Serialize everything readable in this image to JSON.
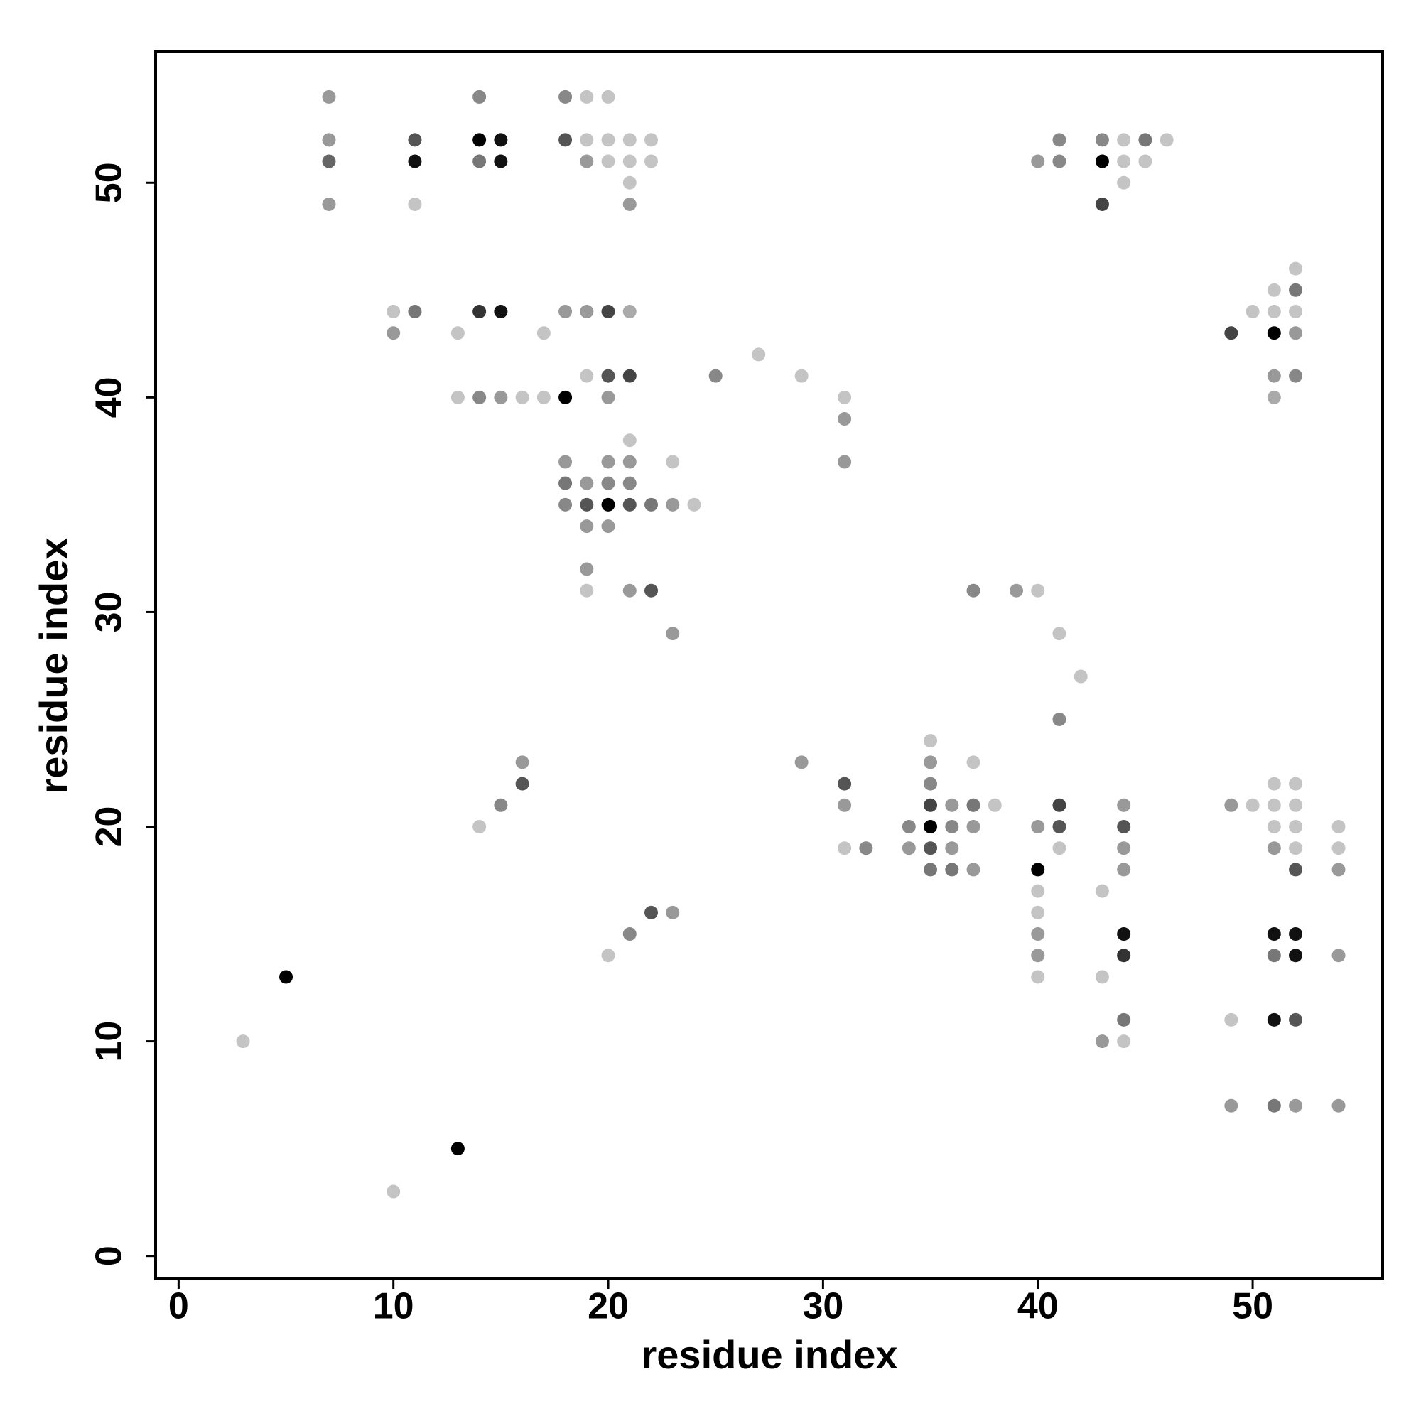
{
  "chart_data": {
    "type": "scatter",
    "x_label": "residue index",
    "y_label": "residue index",
    "xlim": [
      -1.07,
      56.05
    ],
    "ylim": [
      -1.07,
      56.1
    ],
    "xticks": [
      0,
      10,
      20,
      30,
      40,
      50
    ],
    "yticks": [
      0,
      10,
      20,
      30,
      40,
      50
    ],
    "x": [
      7,
      14,
      18,
      19,
      20,
      7,
      11,
      14,
      15,
      18,
      19,
      20,
      21,
      22,
      41,
      43,
      44,
      45,
      46,
      7,
      11,
      14,
      15,
      19,
      20,
      21,
      22,
      40,
      41,
      43,
      44,
      45,
      21,
      44,
      7,
      11,
      21,
      43,
      52,
      51,
      52,
      10,
      11,
      14,
      15,
      18,
      19,
      20,
      21,
      50,
      51,
      52,
      10,
      13,
      17,
      49,
      51,
      52,
      27,
      19,
      20,
      21,
      25,
      29,
      51,
      52,
      13,
      14,
      15,
      16,
      17,
      18,
      20,
      31,
      51,
      31,
      21,
      18,
      20,
      21,
      23,
      31,
      18,
      19,
      20,
      21,
      18,
      19,
      20,
      21,
      22,
      23,
      24,
      19,
      20,
      19,
      19,
      21,
      22,
      37,
      39,
      40,
      23,
      41,
      42,
      41,
      35,
      16,
      29,
      35,
      37,
      16,
      31,
      35,
      51,
      52,
      15,
      31,
      35,
      36,
      37,
      38,
      41,
      44,
      49,
      50,
      51,
      52,
      14,
      34,
      35,
      36,
      37,
      40,
      41,
      44,
      51,
      52,
      54,
      31,
      32,
      34,
      35,
      36,
      41,
      44,
      51,
      52,
      54,
      35,
      36,
      37,
      40,
      44,
      52,
      54,
      40,
      43,
      22,
      23,
      40,
      21,
      40,
      44,
      51,
      52,
      20,
      40,
      44,
      51,
      52,
      54,
      5,
      40,
      43,
      44,
      49,
      51,
      52,
      3,
      43,
      44,
      49,
      51,
      52,
      54,
      13,
      10
    ],
    "values": [
      54,
      54,
      54,
      54,
      54,
      52,
      52,
      52,
      52,
      52,
      52,
      52,
      52,
      52,
      52,
      52,
      52,
      52,
      52,
      51,
      51,
      51,
      51,
      51,
      51,
      51,
      51,
      51,
      51,
      51,
      51,
      51,
      50,
      50,
      49,
      49,
      49,
      49,
      46,
      45,
      45,
      44,
      44,
      44,
      44,
      44,
      44,
      44,
      44,
      44,
      44,
      44,
      43,
      43,
      43,
      43,
      43,
      43,
      42,
      41,
      41,
      41,
      41,
      41,
      41,
      41,
      40,
      40,
      40,
      40,
      40,
      40,
      40,
      40,
      40,
      39,
      38,
      37,
      37,
      37,
      37,
      37,
      36,
      36,
      36,
      36,
      35,
      35,
      35,
      35,
      35,
      35,
      35,
      34,
      34,
      32,
      31,
      31,
      31,
      31,
      31,
      31,
      29,
      29,
      27,
      25,
      24,
      23,
      23,
      23,
      23,
      22,
      22,
      22,
      22,
      22,
      21,
      21,
      21,
      21,
      21,
      21,
      21,
      21,
      21,
      21,
      21,
      21,
      20,
      20,
      20,
      20,
      20,
      20,
      20,
      20,
      20,
      20,
      20,
      19,
      19,
      19,
      19,
      19,
      19,
      19,
      19,
      19,
      19,
      18,
      18,
      18,
      18,
      18,
      18,
      18,
      17,
      17,
      16,
      16,
      16,
      15,
      15,
      15,
      15,
      15,
      14,
      14,
      14,
      14,
      14,
      14,
      13,
      13,
      13,
      11,
      11,
      11,
      11,
      10,
      10,
      10,
      7,
      7,
      7,
      7,
      5,
      3
    ],
    "colors": [
      "#999999",
      "#888888",
      "#888888",
      "#c4c4c4",
      "#c4c4c4",
      "#999999",
      "#555555",
      "#000000",
      "#111111",
      "#555555",
      "#c4c4c4",
      "#c4c4c4",
      "#c4c4c4",
      "#c4c4c4",
      "#888888",
      "#888888",
      "#c4c4c4",
      "#777777",
      "#c4c4c4",
      "#666666",
      "#111111",
      "#777777",
      "#111111",
      "#999999",
      "#c4c4c4",
      "#c4c4c4",
      "#c4c4c4",
      "#999999",
      "#888888",
      "#000000",
      "#c4c4c4",
      "#c4c4c4",
      "#c4c4c4",
      "#c4c4c4",
      "#999999",
      "#c4c4c4",
      "#999999",
      "#444444",
      "#c4c4c4",
      "#c4c4c4",
      "#777777",
      "#c4c4c4",
      "#777777",
      "#333333",
      "#111111",
      "#999999",
      "#999999",
      "#444444",
      "#aaaaaa",
      "#c4c4c4",
      "#c4c4c4",
      "#c4c4c4",
      "#999999",
      "#c4c4c4",
      "#c4c4c4",
      "#444444",
      "#000000",
      "#999999",
      "#c4c4c4",
      "#c4c4c4",
      "#555555",
      "#444444",
      "#888888",
      "#c4c4c4",
      "#999999",
      "#888888",
      "#c4c4c4",
      "#888888",
      "#999999",
      "#c4c4c4",
      "#c4c4c4",
      "#000000",
      "#999999",
      "#c4c4c4",
      "#aaaaaa",
      "#999999",
      "#c4c4c4",
      "#999999",
      "#999999",
      "#999999",
      "#c4c4c4",
      "#999999",
      "#777777",
      "#999999",
      "#888888",
      "#888888",
      "#888888",
      "#555555",
      "#000000",
      "#555555",
      "#777777",
      "#999999",
      "#c4c4c4",
      "#999999",
      "#999999",
      "#999999",
      "#c4c4c4",
      "#999999",
      "#555555",
      "#888888",
      "#999999",
      "#c4c4c4",
      "#999999",
      "#c4c4c4",
      "#c4c4c4",
      "#888888",
      "#c4c4c4",
      "#999999",
      "#999999",
      "#999999",
      "#c4c4c4",
      "#555555",
      "#555555",
      "#888888",
      "#c4c4c4",
      "#c4c4c4",
      "#888888",
      "#999999",
      "#444444",
      "#999999",
      "#777777",
      "#c4c4c4",
      "#444444",
      "#999999",
      "#999999",
      "#c4c4c4",
      "#c4c4c4",
      "#c4c4c4",
      "#c4c4c4",
      "#888888",
      "#000000",
      "#888888",
      "#999999",
      "#999999",
      "#555555",
      "#555555",
      "#c4c4c4",
      "#c4c4c4",
      "#c4c4c4",
      "#c4c4c4",
      "#888888",
      "#999999",
      "#555555",
      "#999999",
      "#c4c4c4",
      "#999999",
      "#999999",
      "#c4c4c4",
      "#c4c4c4",
      "#777777",
      "#777777",
      "#999999",
      "#000000",
      "#999999",
      "#555555",
      "#999999",
      "#c4c4c4",
      "#c4c4c4",
      "#555555",
      "#999999",
      "#c4c4c4",
      "#888888",
      "#999999",
      "#111111",
      "#111111",
      "#111111",
      "#c4c4c4",
      "#999999",
      "#333333",
      "#777777",
      "#111111",
      "#999999",
      "#000000",
      "#c4c4c4",
      "#c4c4c4",
      "#777777",
      "#c4c4c4",
      "#111111",
      "#555555",
      "#c4c4c4",
      "#999999",
      "#c4c4c4",
      "#999999",
      "#777777",
      "#999999",
      "#999999",
      "#000000",
      "#c4c4c4"
    ]
  }
}
